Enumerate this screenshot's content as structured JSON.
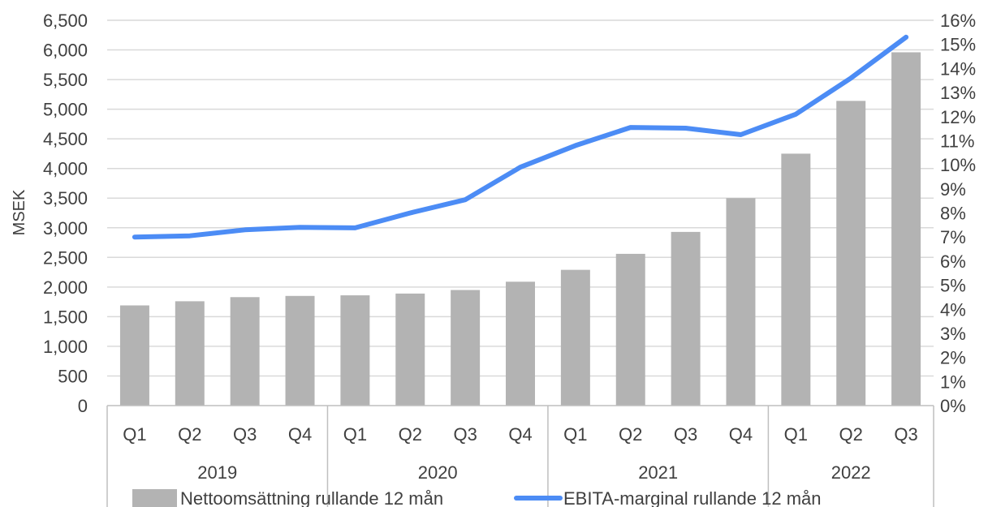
{
  "chart_data": {
    "type": "bar",
    "categories": [
      "Q1",
      "Q2",
      "Q3",
      "Q4",
      "Q1",
      "Q2",
      "Q3",
      "Q4",
      "Q1",
      "Q2",
      "Q3",
      "Q4",
      "Q1",
      "Q2",
      "Q3"
    ],
    "groups": [
      {
        "label": "2019",
        "count": 4
      },
      {
        "label": "2020",
        "count": 4
      },
      {
        "label": "2021",
        "count": 4
      },
      {
        "label": "2022",
        "count": 3
      }
    ],
    "series": [
      {
        "name": "Nettoomsättning rullande 12 mån",
        "type": "bar",
        "axis": "left",
        "color": "#b3b3b3",
        "values": [
          1690,
          1760,
          1830,
          1850,
          1860,
          1890,
          1950,
          2090,
          2290,
          2560,
          2930,
          3500,
          4250,
          5140,
          5960
        ]
      },
      {
        "name": "EBITA-marginal rullande 12 mån",
        "type": "line",
        "axis": "right",
        "color": "#4c8cf5",
        "values": [
          0.07,
          0.0705,
          0.073,
          0.074,
          0.0738,
          0.08,
          0.0855,
          0.099,
          0.108,
          0.1155,
          0.1152,
          0.1125,
          0.121,
          0.136,
          0.153
        ]
      }
    ],
    "y_left": {
      "label": "MSEK",
      "min": 0,
      "max": 6500,
      "step": 500
    },
    "y_right": {
      "label": "",
      "min": 0,
      "max": 0.16,
      "step": 0.01
    },
    "grid": true,
    "legend": "bottom"
  }
}
